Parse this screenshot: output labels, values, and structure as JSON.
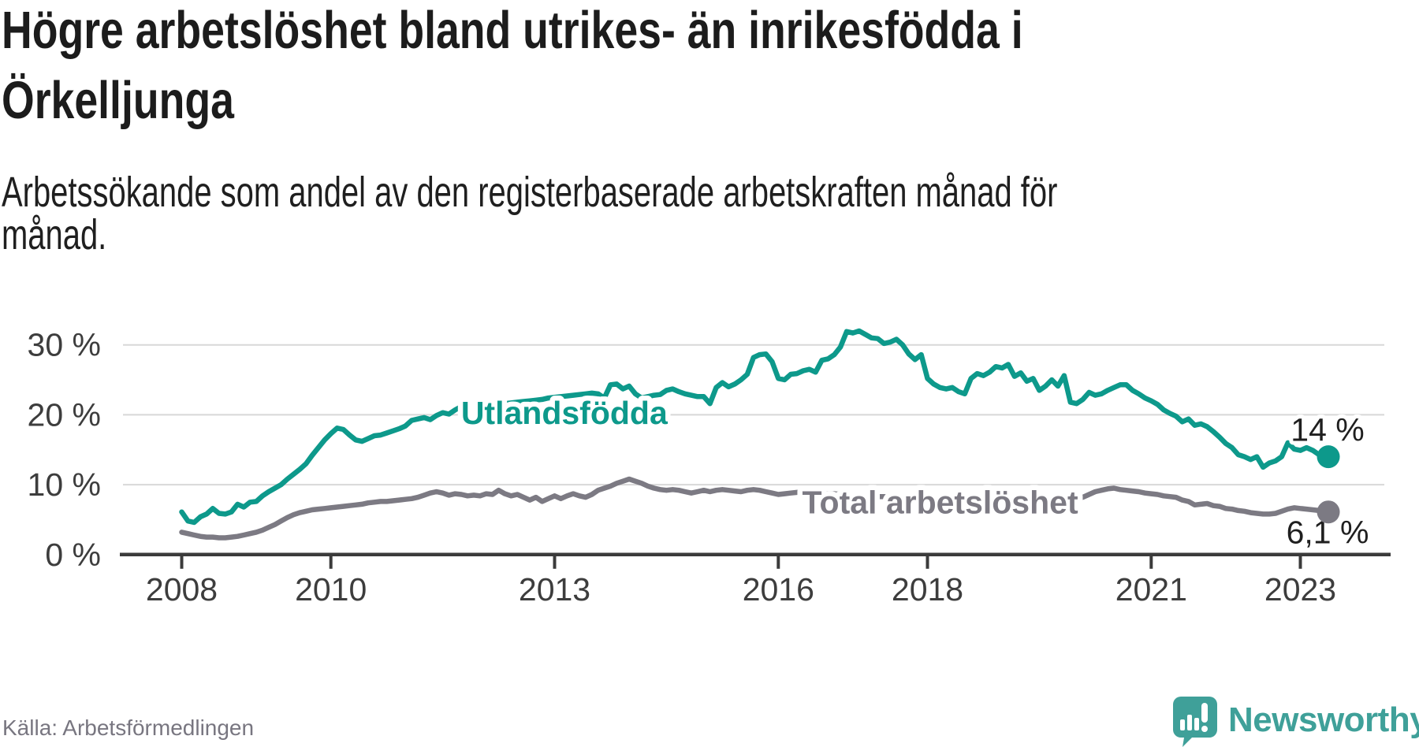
{
  "header": {
    "title_line1": "Högre arbetslöshet bland utrikes- än inrikesfödda i",
    "title_line2": "Örkelljunga",
    "subtitle_line1": "Arbetssökande som andel av den registerbaserade arbetskraften månad för",
    "subtitle_line2": "månad."
  },
  "footer": {
    "source": "Källa: Arbetsförmedlingen",
    "brand": "Newsworthy"
  },
  "chart_data": {
    "type": "line",
    "title": "Högre arbetslöshet bland utrikes- än inrikesfödda i Örkelljunga",
    "subtitle": "Arbetssökande som andel av den registerbaserade arbetskraften månad för månad.",
    "frequency": "monthly",
    "x_start": "2008-01",
    "x_end": "2023-05",
    "x_ticks": [
      2008,
      2010,
      2013,
      2016,
      2018,
      2021,
      2023
    ],
    "y_ticks": [
      0,
      10,
      20,
      30
    ],
    "y_tick_suffix": " %",
    "ylim": [
      0,
      33
    ],
    "grid": "horizontal",
    "legend_position": "inline-labels",
    "axis_color": "#3b3b3b",
    "grid_color": "#d8d8d8",
    "series": [
      {
        "name": "Total arbetslöshet",
        "color": "#7c7a83",
        "end_label": "6,1 %",
        "label_pos": {
          "x_year": 2018.17,
          "y_pct": 7.6
        },
        "values": [
          3.2,
          3.0,
          2.8,
          2.6,
          2.5,
          2.5,
          2.4,
          2.4,
          2.5,
          2.6,
          2.8,
          3.0,
          3.2,
          3.5,
          3.9,
          4.3,
          4.8,
          5.3,
          5.7,
          6.0,
          6.2,
          6.4,
          6.5,
          6.6,
          6.7,
          6.8,
          6.9,
          7.0,
          7.1,
          7.2,
          7.4,
          7.5,
          7.6,
          7.6,
          7.7,
          7.8,
          7.9,
          8.0,
          8.2,
          8.5,
          8.8,
          9.0,
          8.8,
          8.5,
          8.7,
          8.6,
          8.4,
          8.5,
          8.4,
          8.7,
          8.6,
          9.2,
          8.7,
          8.4,
          8.6,
          8.2,
          7.8,
          8.2,
          7.6,
          8.0,
          8.4,
          8.0,
          8.4,
          8.7,
          8.4,
          8.2,
          8.6,
          9.2,
          9.5,
          9.8,
          10.2,
          10.5,
          10.8,
          10.5,
          10.2,
          9.8,
          9.5,
          9.3,
          9.2,
          9.3,
          9.2,
          9.0,
          8.8,
          9.0,
          9.2,
          9.0,
          9.2,
          9.3,
          9.2,
          9.1,
          9.0,
          9.2,
          9.3,
          9.2,
          9.0,
          8.8,
          8.6,
          8.7,
          8.8,
          8.9,
          9.0,
          8.9,
          8.8,
          8.8,
          8.7,
          8.7,
          8.6,
          8.6,
          8.5,
          8.5,
          8.4,
          8.4,
          8.3,
          8.3,
          8.2,
          8.2,
          8.1,
          8.1,
          8.0,
          8.0,
          7.9,
          7.9,
          7.8,
          7.8,
          7.7,
          7.7,
          7.6,
          7.6,
          7.7,
          7.7,
          7.8,
          7.8,
          7.9,
          7.9,
          8.0,
          8.0,
          8.1,
          8.1,
          8.0,
          8.0,
          7.9,
          7.9,
          8.0,
          8.0,
          8.0,
          8.2,
          8.6,
          9.0,
          9.2,
          9.4,
          9.5,
          9.3,
          9.2,
          9.1,
          9.0,
          8.8,
          8.7,
          8.6,
          8.4,
          8.3,
          8.2,
          7.8,
          7.6,
          7.1,
          7.2,
          7.3,
          7.0,
          6.9,
          6.6,
          6.5,
          6.3,
          6.2,
          6.0,
          5.9,
          5.8,
          5.8,
          5.9,
          6.2,
          6.5,
          6.7,
          6.6,
          6.5,
          6.4,
          6.3,
          6.1
        ]
      },
      {
        "name": "Utlandsfödda",
        "color": "#0d998b",
        "end_label": "14 %",
        "label_pos": {
          "x_year": 2013.13,
          "y_pct": 20.4
        },
        "values": [
          6.1,
          4.8,
          4.6,
          5.4,
          5.8,
          6.6,
          5.9,
          5.8,
          6.1,
          7.2,
          6.8,
          7.5,
          7.6,
          8.4,
          9.0,
          9.5,
          10.0,
          10.8,
          11.5,
          12.2,
          13.0,
          14.2,
          15.3,
          16.4,
          17.3,
          18.1,
          17.9,
          17.1,
          16.4,
          16.2,
          16.6,
          17.0,
          17.1,
          17.4,
          17.7,
          18.0,
          18.4,
          19.2,
          19.4,
          19.6,
          19.3,
          19.9,
          20.3,
          20.1,
          20.7,
          21.2,
          20.7,
          21.1,
          21.3,
          21.4,
          21.4,
          21.5,
          21.6,
          21.7,
          21.8,
          21.9,
          22.0,
          22.1,
          22.2,
          22.4,
          22.5,
          22.6,
          22.7,
          22.8,
          22.9,
          23.0,
          23.1,
          23.0,
          22.4,
          24.3,
          24.4,
          23.7,
          24.1,
          23.0,
          22.4,
          22.6,
          22.8,
          22.9,
          23.5,
          23.7,
          23.3,
          23.0,
          22.8,
          22.6,
          22.6,
          21.6,
          23.9,
          24.6,
          24.0,
          24.4,
          25.0,
          25.8,
          28.2,
          28.6,
          28.7,
          27.6,
          25.2,
          25.0,
          25.8,
          25.9,
          26.3,
          26.5,
          26.1,
          27.8,
          28.0,
          28.6,
          29.7,
          31.9,
          31.7,
          32.0,
          31.5,
          31.0,
          30.9,
          30.2,
          30.4,
          30.8,
          30.0,
          28.7,
          27.9,
          28.6,
          25.2,
          24.4,
          23.9,
          23.7,
          23.9,
          23.3,
          23.0,
          25.2,
          25.9,
          25.6,
          26.1,
          26.9,
          26.7,
          27.2,
          25.5,
          26.0,
          24.8,
          25.2,
          23.5,
          24.1,
          25.0,
          24.1,
          25.6,
          21.8,
          21.6,
          22.2,
          23.2,
          22.8,
          23.0,
          23.5,
          23.9,
          24.3,
          24.3,
          23.5,
          23.0,
          22.4,
          22.0,
          21.5,
          20.7,
          20.2,
          19.8,
          19.0,
          19.4,
          18.5,
          18.7,
          18.3,
          17.6,
          16.8,
          15.9,
          15.3,
          14.3,
          14.0,
          13.6,
          14.0,
          12.5,
          13.1,
          13.4,
          14.0,
          16.0,
          15.1,
          14.9,
          15.3,
          14.9,
          14.3,
          14.0
        ]
      }
    ]
  }
}
